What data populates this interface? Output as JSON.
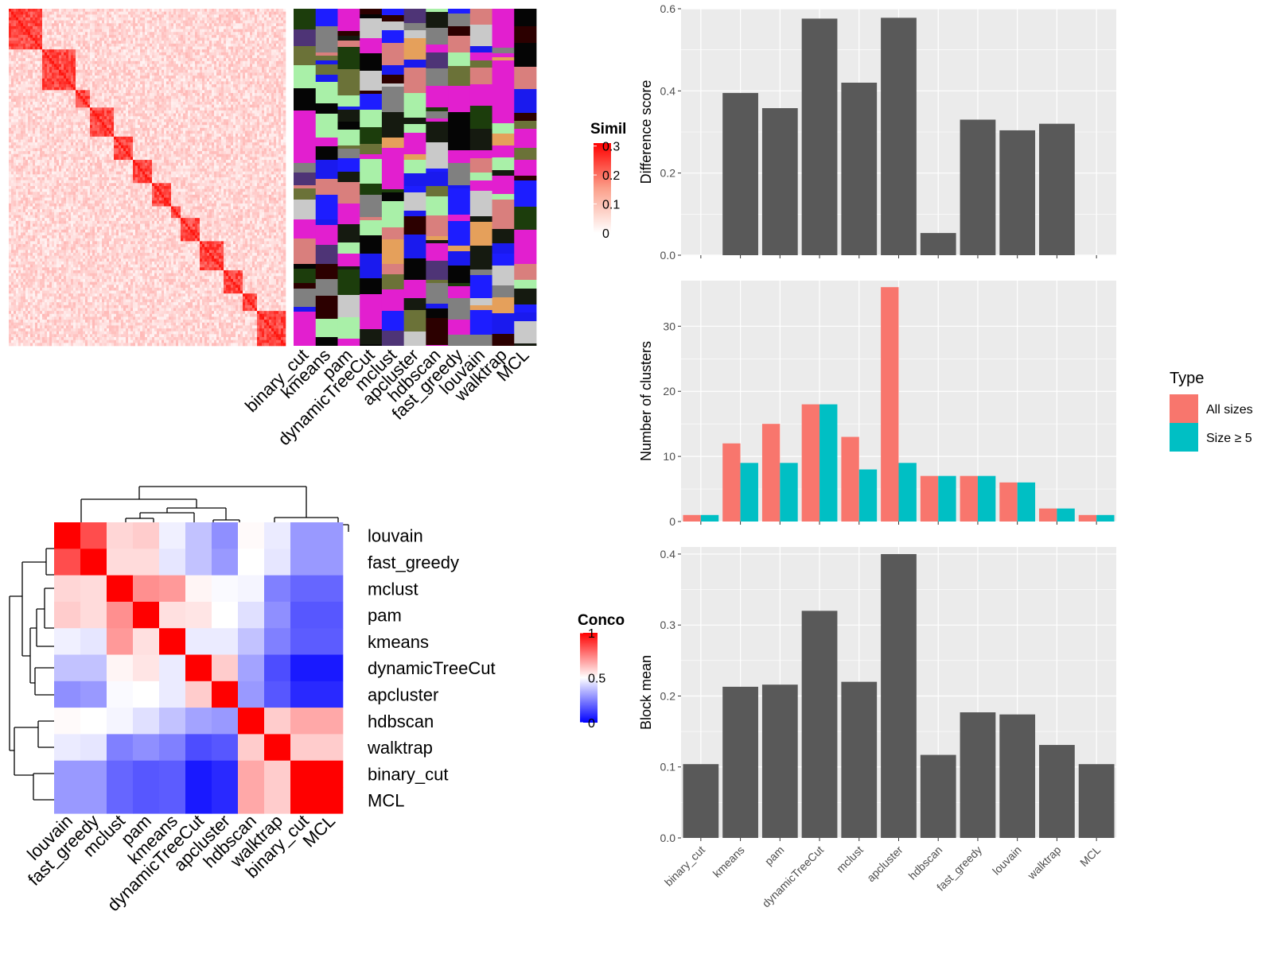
{
  "methods_order": [
    "binary_cut",
    "kmeans",
    "pam",
    "dynamicTreeCut",
    "mclust",
    "apcluster",
    "hdbscan",
    "fast_greedy",
    "louvain",
    "walktrap",
    "MCL"
  ],
  "similarity_legend": {
    "title": "Similarity",
    "ticks": [
      "0.3",
      "0.2",
      "0.1",
      "0"
    ]
  },
  "concordance_legend": {
    "title": "Concordance",
    "ticks": [
      "1",
      "0.5",
      "0"
    ]
  },
  "type_legend": {
    "title": "Type",
    "items": [
      "All sizes",
      "Size ≥ 5"
    ],
    "colors": [
      "#F8766D",
      "#00BFC4"
    ]
  },
  "concordance": {
    "order": [
      "louvain",
      "fast_greedy",
      "mclust",
      "pam",
      "kmeans",
      "dynamicTreeCut",
      "apcluster",
      "hdbscan",
      "walktrap",
      "binary_cut",
      "MCL"
    ]
  },
  "chart_data": [
    {
      "type": "bar",
      "categories": [
        "binary_cut",
        "kmeans",
        "pam",
        "dynamicTreeCut",
        "mclust",
        "apcluster",
        "hdbscan",
        "fast_greedy",
        "louvain",
        "walktrap",
        "MCL"
      ],
      "values": [
        0,
        0.395,
        0.358,
        0.576,
        0.42,
        0.578,
        0.054,
        0.33,
        0.304,
        0.32,
        0
      ],
      "ylabel": "Difference score",
      "ylim": [
        0,
        0.6
      ],
      "yticks": [
        0.0,
        0.2,
        0.4,
        0.6
      ],
      "ytick_labels": [
        "0.0",
        "0.2",
        "0.4",
        "0.6"
      ]
    },
    {
      "type": "bar",
      "categories": [
        "binary_cut",
        "kmeans",
        "pam",
        "dynamicTreeCut",
        "mclust",
        "apcluster",
        "hdbscan",
        "fast_greedy",
        "louvain",
        "walktrap",
        "MCL"
      ],
      "series": [
        {
          "name": "All sizes",
          "values": [
            1,
            12,
            15,
            18,
            13,
            36,
            7,
            7,
            6,
            2,
            1
          ]
        },
        {
          "name": "Size ≥ 5",
          "values": [
            1,
            9,
            9,
            18,
            8,
            9,
            7,
            7,
            6,
            2,
            1
          ]
        }
      ],
      "ylabel": "Number of clusters",
      "ylim": [
        0,
        37
      ],
      "yticks": [
        0,
        10,
        20,
        30
      ],
      "ytick_labels": [
        "0",
        "10",
        "20",
        "30"
      ]
    },
    {
      "type": "bar",
      "categories": [
        "binary_cut",
        "kmeans",
        "pam",
        "dynamicTreeCut",
        "mclust",
        "apcluster",
        "hdbscan",
        "fast_greedy",
        "louvain",
        "walktrap",
        "MCL"
      ],
      "values": [
        0.104,
        0.213,
        0.216,
        0.32,
        0.22,
        0.4,
        0.117,
        0.177,
        0.174,
        0.131,
        0.104
      ],
      "ylabel": "Block mean",
      "ylim": [
        0,
        0.41
      ],
      "yticks": [
        0.0,
        0.1,
        0.2,
        0.3,
        0.4
      ],
      "ytick_labels": [
        "0.0",
        "0.1",
        "0.2",
        "0.3",
        "0.4"
      ]
    },
    {
      "type": "heatmap",
      "rows": [
        "louvain",
        "fast_greedy",
        "mclust",
        "pam",
        "kmeans",
        "dynamicTreeCut",
        "apcluster",
        "hdbscan",
        "walktrap",
        "binary_cut",
        "MCL"
      ],
      "columns": [
        "louvain",
        "fast_greedy",
        "mclust",
        "pam",
        "kmeans",
        "dynamicTreeCut",
        "apcluster",
        "hdbscan",
        "walktrap",
        "binary_cut",
        "MCL"
      ],
      "values": [
        [
          1.0,
          0.85,
          0.58,
          0.6,
          0.47,
          0.38,
          0.28,
          0.51,
          0.46,
          0.3,
          0.3
        ],
        [
          0.85,
          1.0,
          0.57,
          0.57,
          0.45,
          0.38,
          0.3,
          0.5,
          0.45,
          0.3,
          0.3
        ],
        [
          0.58,
          0.57,
          1.0,
          0.72,
          0.7,
          0.52,
          0.49,
          0.48,
          0.25,
          0.2,
          0.2
        ],
        [
          0.6,
          0.57,
          0.72,
          1.0,
          0.56,
          0.55,
          0.5,
          0.44,
          0.28,
          0.17,
          0.17
        ],
        [
          0.47,
          0.45,
          0.7,
          0.56,
          1.0,
          0.46,
          0.46,
          0.38,
          0.25,
          0.18,
          0.18
        ],
        [
          0.38,
          0.38,
          0.52,
          0.55,
          0.46,
          1.0,
          0.6,
          0.32,
          0.15,
          0.05,
          0.05
        ],
        [
          0.28,
          0.3,
          0.49,
          0.5,
          0.46,
          0.6,
          1.0,
          0.3,
          0.17,
          0.08,
          0.08
        ],
        [
          0.51,
          0.5,
          0.48,
          0.44,
          0.38,
          0.32,
          0.3,
          1.0,
          0.6,
          0.67,
          0.67
        ],
        [
          0.46,
          0.45,
          0.25,
          0.28,
          0.25,
          0.15,
          0.17,
          0.6,
          1.0,
          0.6,
          0.6
        ],
        [
          0.3,
          0.3,
          0.2,
          0.17,
          0.18,
          0.05,
          0.08,
          0.67,
          0.6,
          1.0,
          1.0
        ],
        [
          0.3,
          0.3,
          0.2,
          0.17,
          0.18,
          0.05,
          0.08,
          0.67,
          0.6,
          1.0,
          1.0
        ]
      ],
      "legend_range": [
        0,
        1
      ]
    }
  ]
}
